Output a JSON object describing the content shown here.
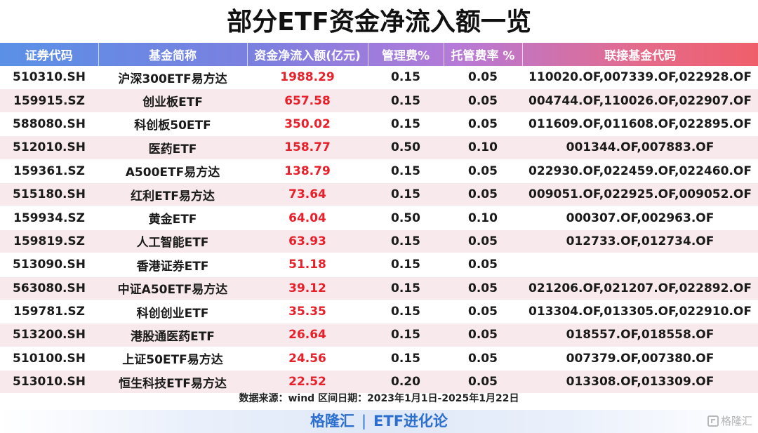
{
  "title": "部分ETF资金净流入额一览",
  "table": {
    "headers": [
      "证券代码",
      "基金简称",
      "资金净流入额(亿元)",
      "管理费%",
      "托管费率 %",
      "联接基金代码"
    ],
    "rows": [
      {
        "code": "510310.SH",
        "name": "沪深300ETF易方达",
        "flow": "1988.29",
        "mgmt": "0.15",
        "custody": "0.05",
        "links": "110020.OF,007339.OF,022928.OF"
      },
      {
        "code": "159915.SZ",
        "name": "创业板ETF",
        "flow": "657.58",
        "mgmt": "0.15",
        "custody": "0.05",
        "links": "004744.OF,110026.OF,022907.OF"
      },
      {
        "code": "588080.SH",
        "name": "科创板50ETF",
        "flow": "350.02",
        "mgmt": "0.15",
        "custody": "0.05",
        "links": "011609.OF,011608.OF,022895.OF"
      },
      {
        "code": "512010.SH",
        "name": "医药ETF",
        "flow": "158.77",
        "mgmt": "0.50",
        "custody": "0.10",
        "links": "001344.OF,007883.OF"
      },
      {
        "code": "159361.SZ",
        "name": "A500ETF易方达",
        "flow": "138.79",
        "mgmt": "0.15",
        "custody": "0.05",
        "links": "022930.OF,022459.OF,022460.OF"
      },
      {
        "code": "515180.SH",
        "name": "红利ETF易方达",
        "flow": "73.64",
        "mgmt": "0.15",
        "custody": "0.05",
        "links": "009051.OF,022925.OF,009052.OF"
      },
      {
        "code": "159934.SZ",
        "name": "黄金ETF",
        "flow": "64.04",
        "mgmt": "0.50",
        "custody": "0.10",
        "links": "000307.OF,002963.OF"
      },
      {
        "code": "159819.SZ",
        "name": "人工智能ETF",
        "flow": "63.93",
        "mgmt": "0.15",
        "custody": "0.05",
        "links": "012733.OF,012734.OF"
      },
      {
        "code": "513090.SH",
        "name": "香港证券ETF",
        "flow": "51.18",
        "mgmt": "0.15",
        "custody": "0.05",
        "links": ""
      },
      {
        "code": "563080.SH",
        "name": "中证A50ETF易方达",
        "flow": "39.12",
        "mgmt": "0.15",
        "custody": "0.05",
        "links": "021206.OF,021207.OF,022892.OF"
      },
      {
        "code": "159781.SZ",
        "name": "科创创业ETF",
        "flow": "35.35",
        "mgmt": "0.15",
        "custody": "0.05",
        "links": "013304.OF,013305.OF,022910.OF"
      },
      {
        "code": "513200.SH",
        "name": "港股通医药ETF",
        "flow": "26.64",
        "mgmt": "0.15",
        "custody": "0.05",
        "links": "018557.OF,018558.OF"
      },
      {
        "code": "510100.SH",
        "name": "上证50ETF易方达",
        "flow": "24.56",
        "mgmt": "0.15",
        "custody": "0.05",
        "links": "007379.OF,007380.OF"
      },
      {
        "code": "513010.SH",
        "name": "恒生科技ETF易方达",
        "flow": "22.52",
        "mgmt": "0.20",
        "custody": "0.05",
        "links": "013308.OF,013309.OF"
      }
    ]
  },
  "source": "数据来源：wind   区间日期：2023年1月1日-2025年1月22日",
  "brand": {
    "left": "格隆汇",
    "separator": "|",
    "right": "ETF进化论"
  },
  "watermark": "格隆汇",
  "colors": {
    "flow_text": "#e8202a",
    "header_start": "#5a90e6",
    "header_end": "#ef5f6a",
    "row_alt": "#f8e9ec",
    "brand_text": "#2c6fcf"
  }
}
